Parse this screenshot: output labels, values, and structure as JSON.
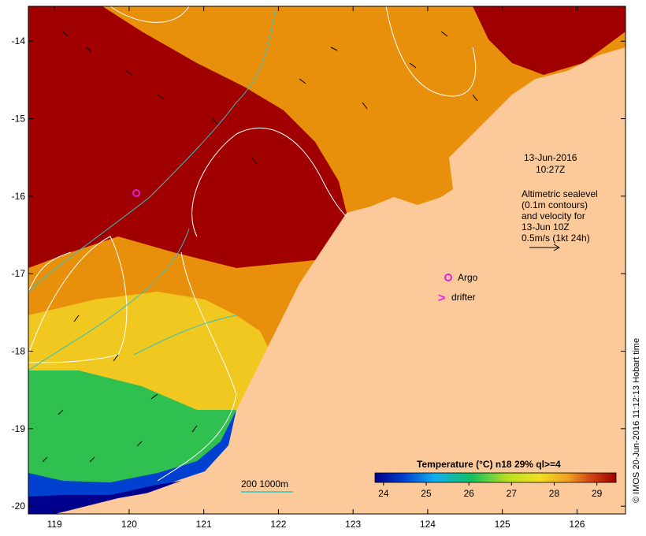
{
  "map": {
    "x_ticks": [
      "119",
      "120",
      "121",
      "122",
      "123",
      "124",
      "125",
      "126"
    ],
    "y_ticks": [
      "-14",
      "-15",
      "-16",
      "-17",
      "-18",
      "-19",
      "-20"
    ],
    "x_range": [
      118.65,
      126.65
    ],
    "y_range": [
      -20.1,
      -13.55
    ]
  },
  "annotations": {
    "date": "13-Jun-2016",
    "time": "10:27Z",
    "legend_lines": [
      "Altimetric sealevel",
      "(0.1m contours)",
      "and velocity for",
      "13-Jun 10Z",
      "0.5m/s (1kt 24h)"
    ],
    "argo_label": "Argo",
    "drifter_label": "drifter",
    "drifter_symbol": ">",
    "bathy_label": "200  1000m"
  },
  "colorbar": {
    "title": "Temperature (°C) n18 29% ql>=4",
    "labels": [
      "24",
      "25",
      "26",
      "27",
      "28",
      "29"
    ],
    "min": 23.8,
    "max": 29.45
  },
  "credit": "© IMOS 20-Jun-2016 11:12:13 Hobart time",
  "colors": {
    "land": "#fbc99a",
    "argo": "#e020e0",
    "bathy": "#2ec4c4",
    "contour": "#ffffff",
    "hot": "#a00000"
  }
}
